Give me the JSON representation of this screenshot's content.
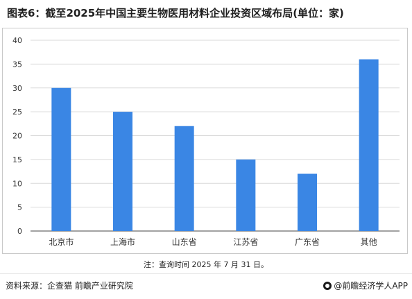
{
  "title": "图表6：截至2025年中国主要生物医用材料企业投资区域布局(单位：家)",
  "note": "注：查询时间 2025 年 7 月 31 日。",
  "footer": {
    "source": "资料来源：企查猫 前瞻产业研究院",
    "brand": "@前瞻经济学人APP"
  },
  "colors": {
    "bar": "#3a86e4",
    "grid": "#d9d9d9",
    "axis": "#444444"
  },
  "chart_data": {
    "type": "bar",
    "title": "图表6：截至2025年中国主要生物医用材料企业投资区域布局(单位：家)",
    "categories": [
      "北京市",
      "上海市",
      "山东省",
      "江苏省",
      "广东省",
      "其他"
    ],
    "values": [
      30,
      25,
      22,
      15,
      12,
      36
    ],
    "ylim": [
      0,
      40
    ],
    "yticks": [
      "0",
      "5",
      "10",
      "15",
      "20",
      "25",
      "30",
      "35",
      "40"
    ],
    "xlabel": "",
    "ylabel": "",
    "grid": true,
    "legend": "none"
  }
}
